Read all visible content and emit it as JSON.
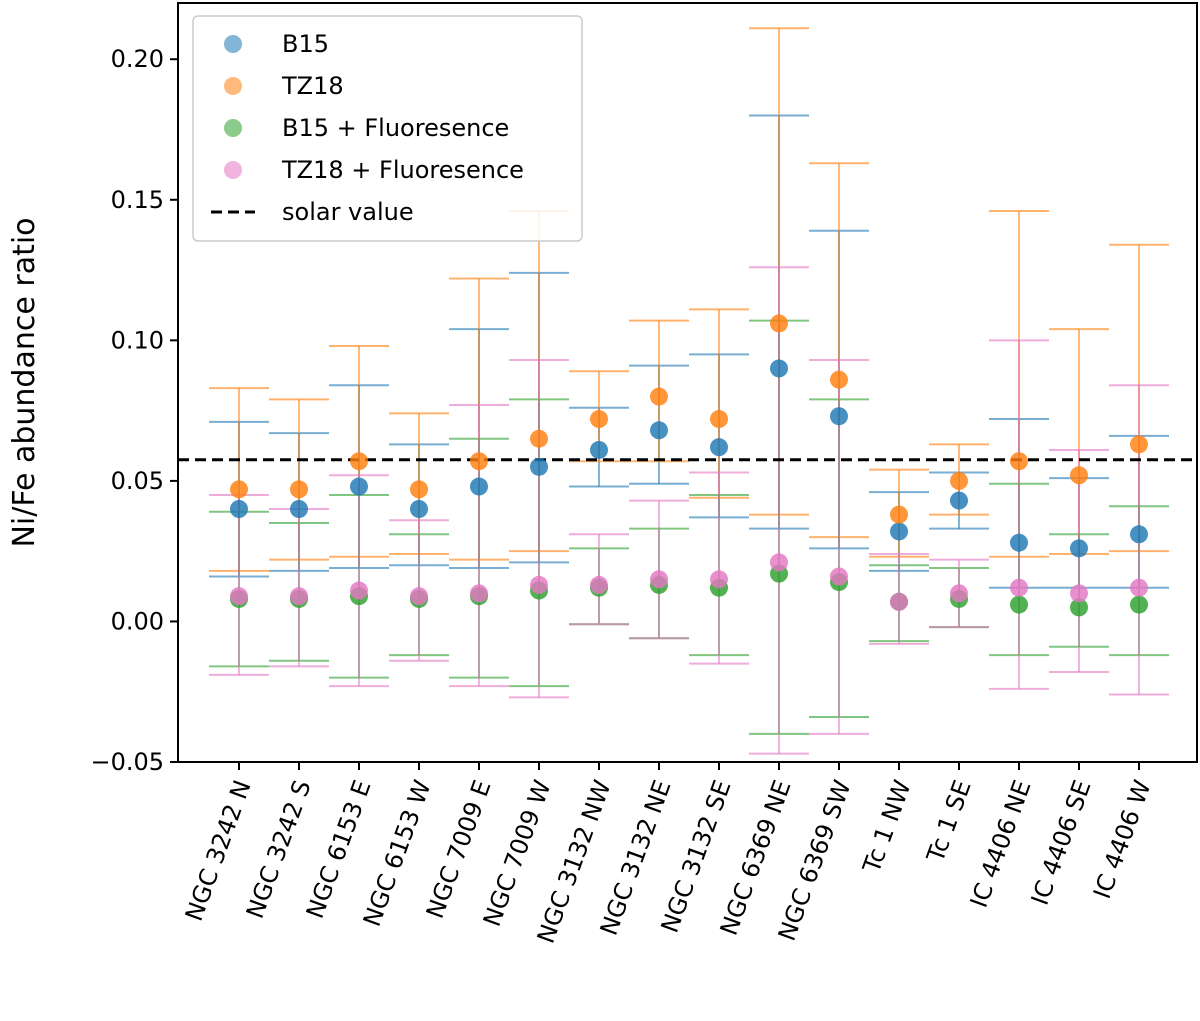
{
  "chart_data": {
    "type": "scatter",
    "title": "",
    "xlabel": "",
    "ylabel": "Ni/Fe abundance ratio",
    "ylim": [
      -0.05,
      0.22
    ],
    "yticks": [
      -0.05,
      0.0,
      0.05,
      0.1,
      0.15,
      0.2
    ],
    "ytick_labels": [
      "−0.05",
      "0.00",
      "0.05",
      "0.10",
      "0.15",
      "0.20"
    ],
    "grid": false,
    "legend_position": "top-left",
    "categories": [
      "NGC 3242 N",
      "NGC 3242 S",
      "NGC 6153 E",
      "NGC 6153 W",
      "NGC 7009 E",
      "NGC 7009 W",
      "NGC 3132 NW",
      "NGC 3132 NE",
      "NGC 3132 SE",
      "NGC 6369 NE",
      "NGC 6369 SW",
      "Tc 1 NW",
      "Tc 1 SE",
      "IC 4406 NE",
      "IC 4406 SE",
      "IC 4406 W"
    ],
    "reference_line": {
      "name": "solar value",
      "value": 0.0575,
      "style": "dashed",
      "color": "#000000"
    },
    "series": [
      {
        "name": "B15",
        "color": "#1f77b4",
        "values": [
          0.04,
          0.04,
          0.048,
          0.04,
          0.048,
          0.055,
          0.061,
          0.068,
          0.062,
          0.09,
          0.073,
          0.032,
          0.043,
          0.028,
          0.026,
          0.031
        ],
        "lower": [
          0.016,
          0.018,
          0.019,
          0.02,
          0.019,
          0.021,
          0.048,
          0.049,
          0.037,
          0.033,
          0.026,
          0.018,
          0.033,
          0.012,
          0.012,
          0.012
        ],
        "upper": [
          0.071,
          0.067,
          0.084,
          0.063,
          0.104,
          0.124,
          0.076,
          0.091,
          0.095,
          0.18,
          0.139,
          0.046,
          0.053,
          0.072,
          0.051,
          0.066
        ]
      },
      {
        "name": "TZ18",
        "color": "#ff7f0e",
        "values": [
          0.047,
          0.047,
          0.057,
          0.047,
          0.057,
          0.065,
          0.072,
          0.08,
          0.072,
          0.106,
          0.086,
          0.038,
          0.05,
          0.057,
          0.052,
          0.063
        ],
        "lower": [
          0.018,
          0.022,
          0.023,
          0.024,
          0.022,
          0.025,
          0.057,
          0.057,
          0.044,
          0.038,
          0.03,
          0.023,
          0.038,
          0.023,
          0.024,
          0.025
        ],
        "upper": [
          0.083,
          0.079,
          0.098,
          0.074,
          0.122,
          0.146,
          0.089,
          0.107,
          0.111,
          0.211,
          0.163,
          0.054,
          0.063,
          0.146,
          0.104,
          0.134
        ]
      },
      {
        "name": "B15 + Fluoresence",
        "color": "#2ca02c",
        "values": [
          0.008,
          0.008,
          0.009,
          0.008,
          0.009,
          0.011,
          0.012,
          0.013,
          0.012,
          0.017,
          0.014,
          0.007,
          0.008,
          0.006,
          0.005,
          0.006
        ],
        "lower": [
          -0.016,
          -0.014,
          -0.02,
          -0.012,
          -0.02,
          -0.023,
          -0.001,
          -0.006,
          -0.012,
          -0.04,
          -0.034,
          -0.007,
          -0.002,
          -0.012,
          -0.009,
          -0.012
        ],
        "upper": [
          0.039,
          0.035,
          0.045,
          0.031,
          0.065,
          0.079,
          0.026,
          0.033,
          0.045,
          0.107,
          0.079,
          0.02,
          0.019,
          0.049,
          0.031,
          0.041
        ]
      },
      {
        "name": "TZ18 + Fluoresence",
        "color": "#e377c2",
        "values": [
          0.009,
          0.009,
          0.011,
          0.009,
          0.01,
          0.013,
          0.013,
          0.015,
          0.015,
          0.021,
          0.016,
          0.007,
          0.01,
          0.012,
          0.01,
          0.012
        ],
        "lower": [
          -0.019,
          -0.016,
          -0.023,
          -0.014,
          -0.023,
          -0.027,
          -0.001,
          -0.006,
          -0.015,
          -0.047,
          -0.04,
          -0.008,
          -0.002,
          -0.024,
          -0.018,
          -0.026
        ],
        "upper": [
          0.045,
          0.04,
          0.052,
          0.036,
          0.077,
          0.093,
          0.031,
          0.043,
          0.053,
          0.126,
          0.093,
          0.024,
          0.022,
          0.1,
          0.061,
          0.084
        ]
      }
    ]
  }
}
